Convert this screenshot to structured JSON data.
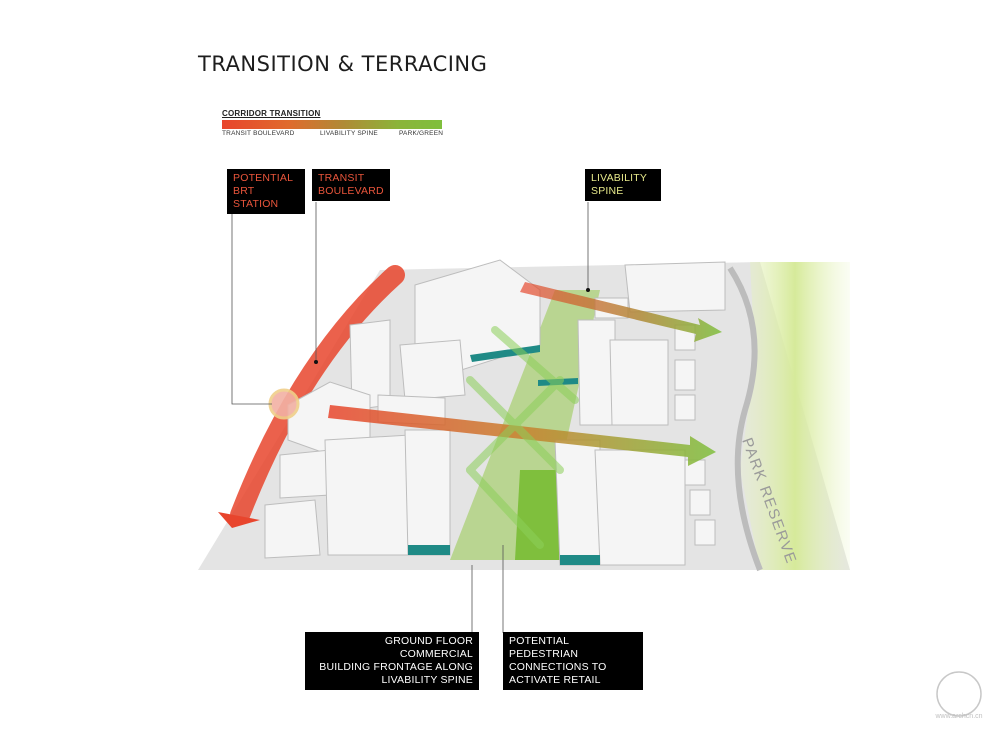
{
  "title": "TRANSITION & TERRACING",
  "legend": {
    "title": "CORRIDOR TRANSITION",
    "labels": [
      "TRANSIT BOULEVARD",
      "LIVABILITY SPINE",
      "PARK/GREEN"
    ],
    "colors": [
      "#e8452d",
      "#b08a36",
      "#7fbf3d"
    ]
  },
  "callouts": {
    "brt": "POTENTIAL\nBRT STATION",
    "transit": "TRANSIT\nBOULEVARD",
    "spine": "LIVABILITY\nSPINE",
    "ground": "GROUND FLOOR COMMERCIAL\nBUILDING FRONTAGE ALONG\nLIVABILITY SPINE",
    "pedestrian": "POTENTIAL PEDESTRIAN\nCONNECTIONS TO\nACTIVATE RETAIL"
  },
  "map_label": "PARK RESERVE",
  "colors": {
    "transit_red": "#e8452d",
    "callout_red": "#e9553b",
    "callout_yellow": "#e6e88a",
    "green": "#7fbf3d",
    "teal": "#1f8a86"
  },
  "watermark": "www.archcn.cn"
}
